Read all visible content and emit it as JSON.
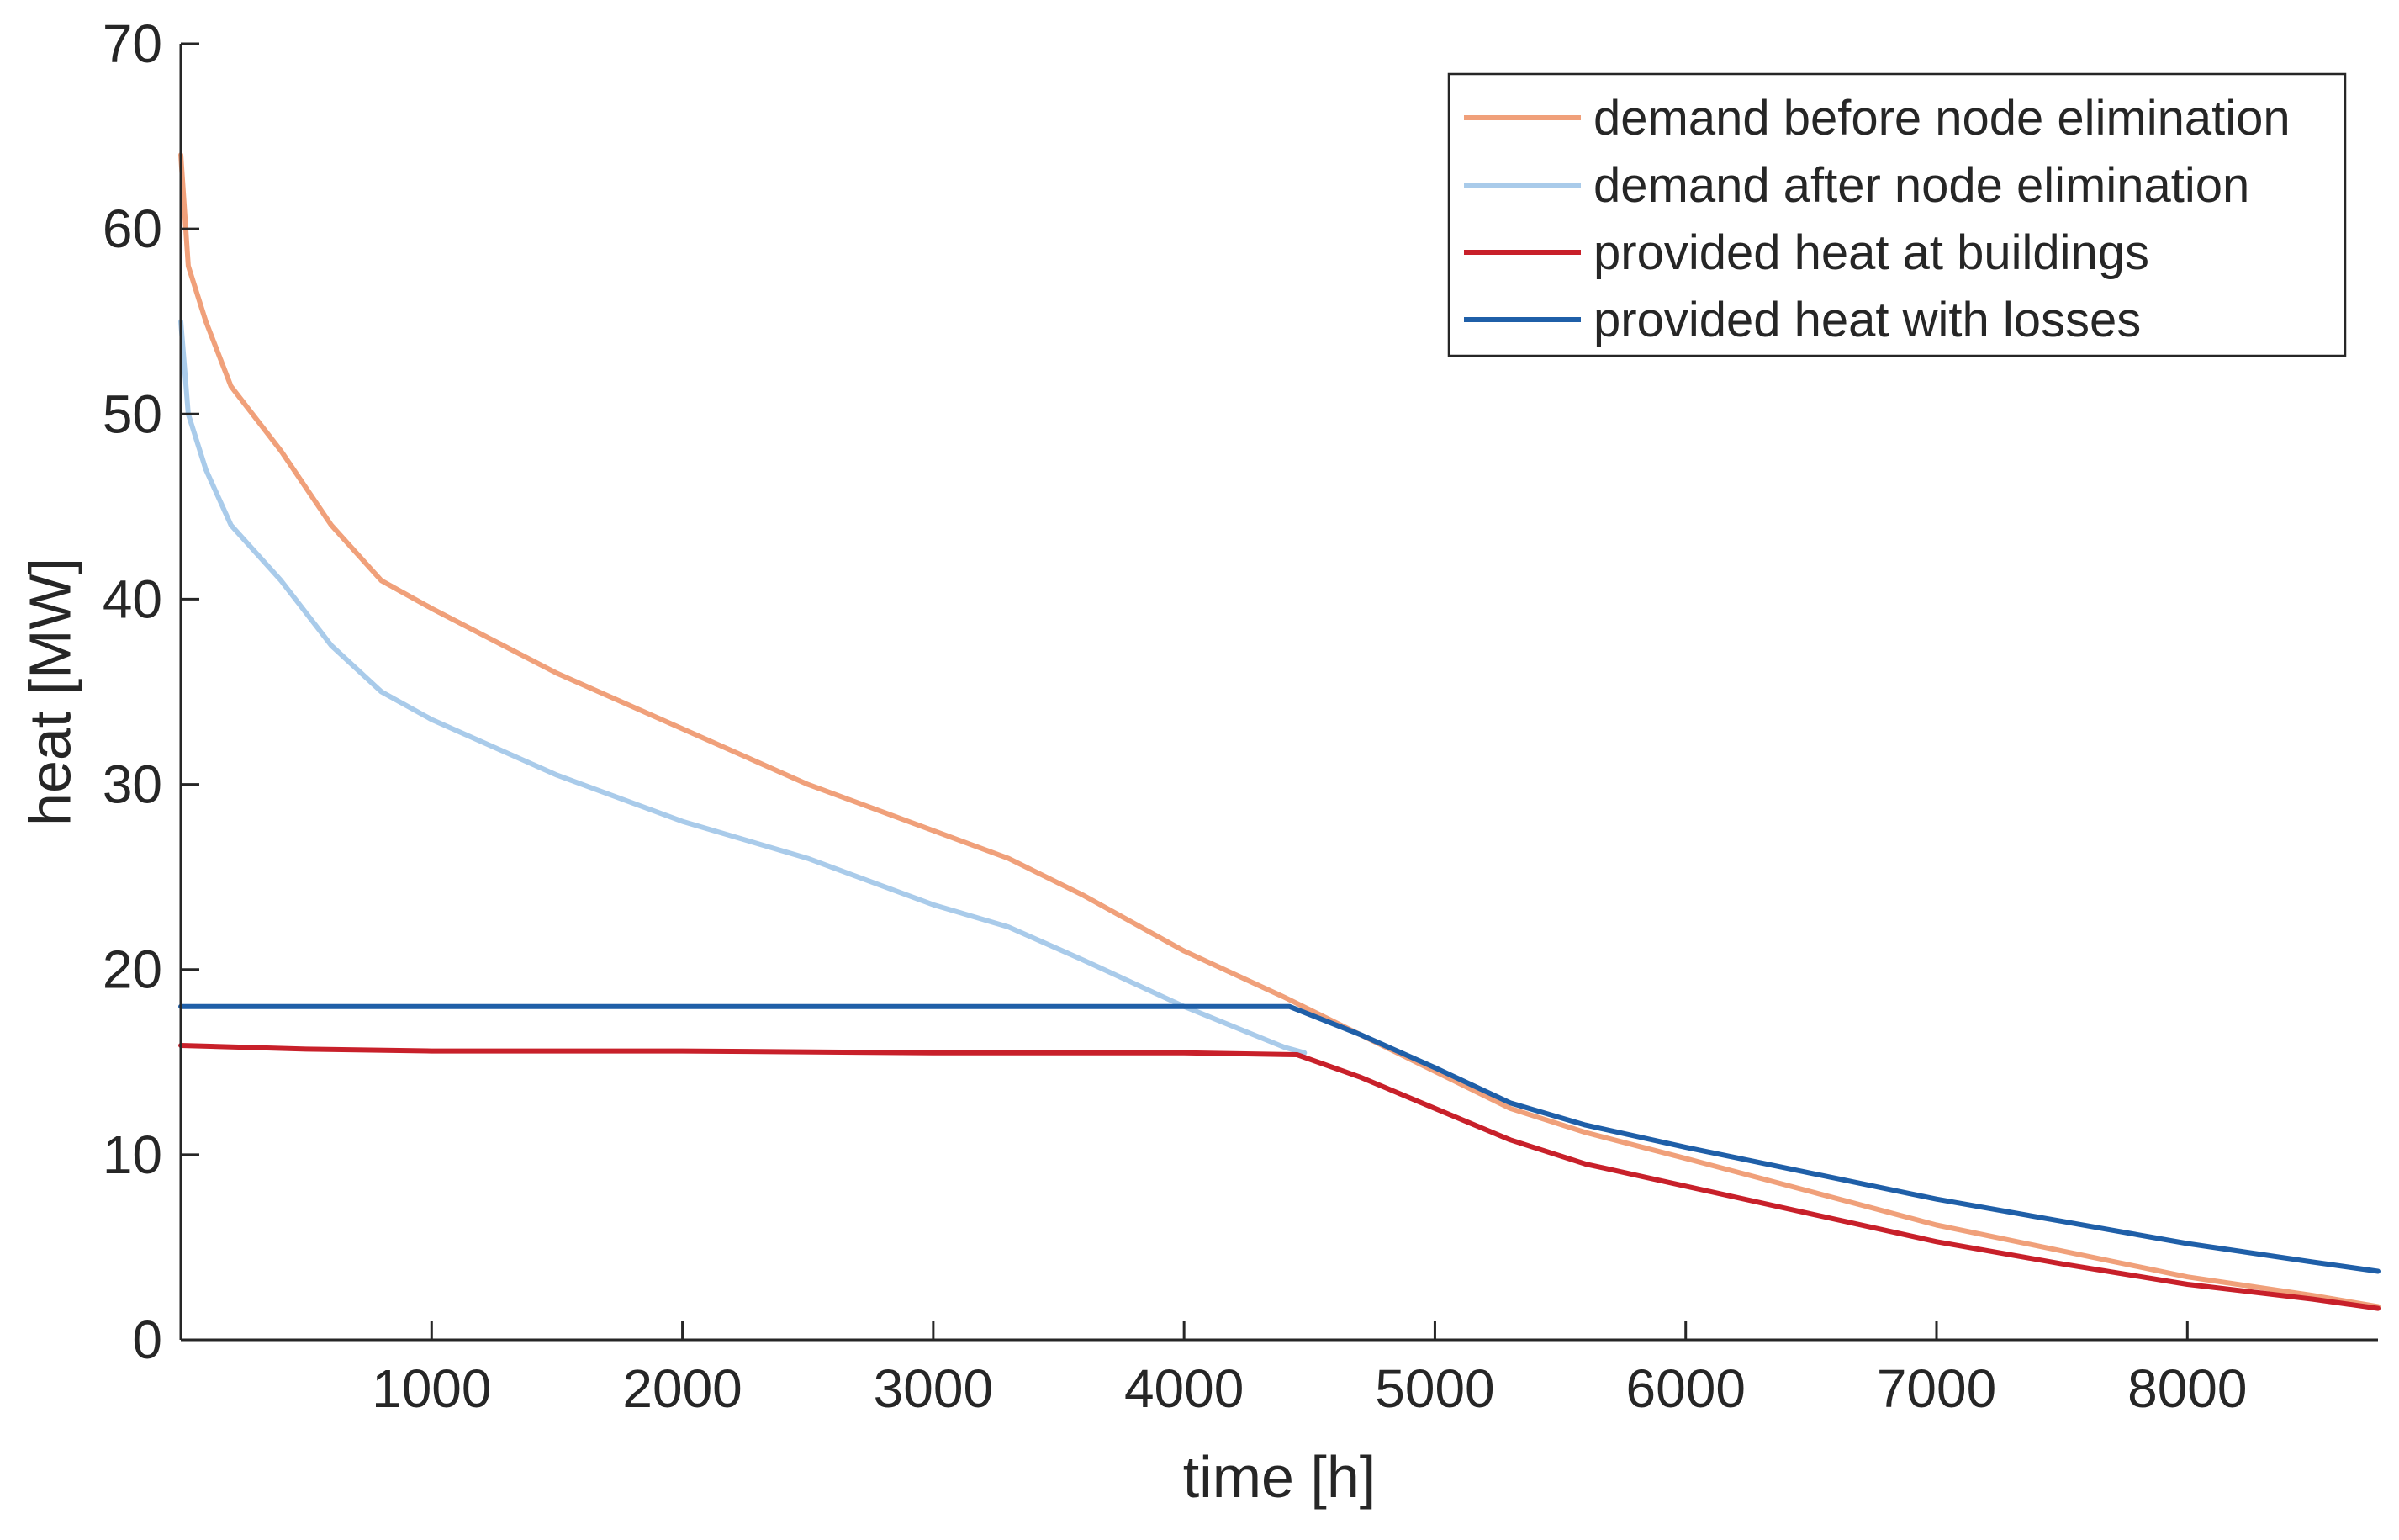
{
  "chart_data": {
    "type": "line",
    "title": "",
    "xlabel": "time [h]",
    "ylabel": "heat [MW]",
    "xlim": [
      0,
      8760
    ],
    "ylim": [
      0,
      70
    ],
    "xticks": [
      1000,
      2000,
      3000,
      4000,
      5000,
      6000,
      7000,
      8000
    ],
    "yticks": [
      0,
      10,
      20,
      30,
      40,
      50,
      60,
      70
    ],
    "grid": false,
    "legend_position": "top-right",
    "series": [
      {
        "name": "demand before node elimination",
        "color": "#f0a07a",
        "x": [
          0,
          30,
          100,
          200,
          400,
          600,
          800,
          1000,
          1500,
          2000,
          2500,
          3000,
          3300,
          3600,
          4000,
          4400,
          4700,
          5000,
          5300,
          5600,
          6000,
          6500,
          7000,
          7500,
          8000,
          8500,
          8760
        ],
        "values": [
          64,
          58,
          55,
          51.5,
          48,
          44,
          41,
          39.5,
          36,
          33,
          30,
          27.5,
          26,
          24,
          21,
          18.5,
          16.5,
          14.5,
          12.5,
          11.2,
          9.8,
          8,
          6.2,
          4.8,
          3.4,
          2.4,
          1.8
        ]
      },
      {
        "name": "demand after node elimination",
        "color": "#a9cbea",
        "x": [
          0,
          30,
          100,
          200,
          400,
          600,
          800,
          1000,
          1500,
          2000,
          2500,
          3000,
          3300,
          3600,
          4000,
          4400,
          4480
        ],
        "values": [
          55,
          50,
          47,
          44,
          41,
          37.5,
          35,
          33.5,
          30.5,
          28,
          26,
          23.5,
          22.3,
          20.5,
          18,
          15.8,
          15.5
        ]
      },
      {
        "name": "provided heat at buildings",
        "color": "#c8202a",
        "x": [
          0,
          500,
          1000,
          2000,
          3000,
          4000,
          4450,
          4700,
          5000,
          5300,
          5600,
          6000,
          6500,
          7000,
          7500,
          8000,
          8500,
          8760
        ],
        "values": [
          15.9,
          15.7,
          15.6,
          15.6,
          15.5,
          15.5,
          15.4,
          14.2,
          12.5,
          10.8,
          9.5,
          8.3,
          6.8,
          5.3,
          4.1,
          3,
          2.2,
          1.7
        ]
      },
      {
        "name": "provided heat with losses",
        "color": "#1f5fa8",
        "x": [
          0,
          1000,
          2000,
          3000,
          4000,
          4420,
          4700,
          5000,
          5300,
          5600,
          6000,
          6500,
          7000,
          7500,
          8000,
          8500,
          8760
        ],
        "values": [
          18,
          18,
          18,
          18,
          18,
          18,
          16.5,
          14.7,
          12.8,
          11.6,
          10.4,
          9,
          7.6,
          6.4,
          5.2,
          4.2,
          3.7
        ]
      }
    ]
  }
}
